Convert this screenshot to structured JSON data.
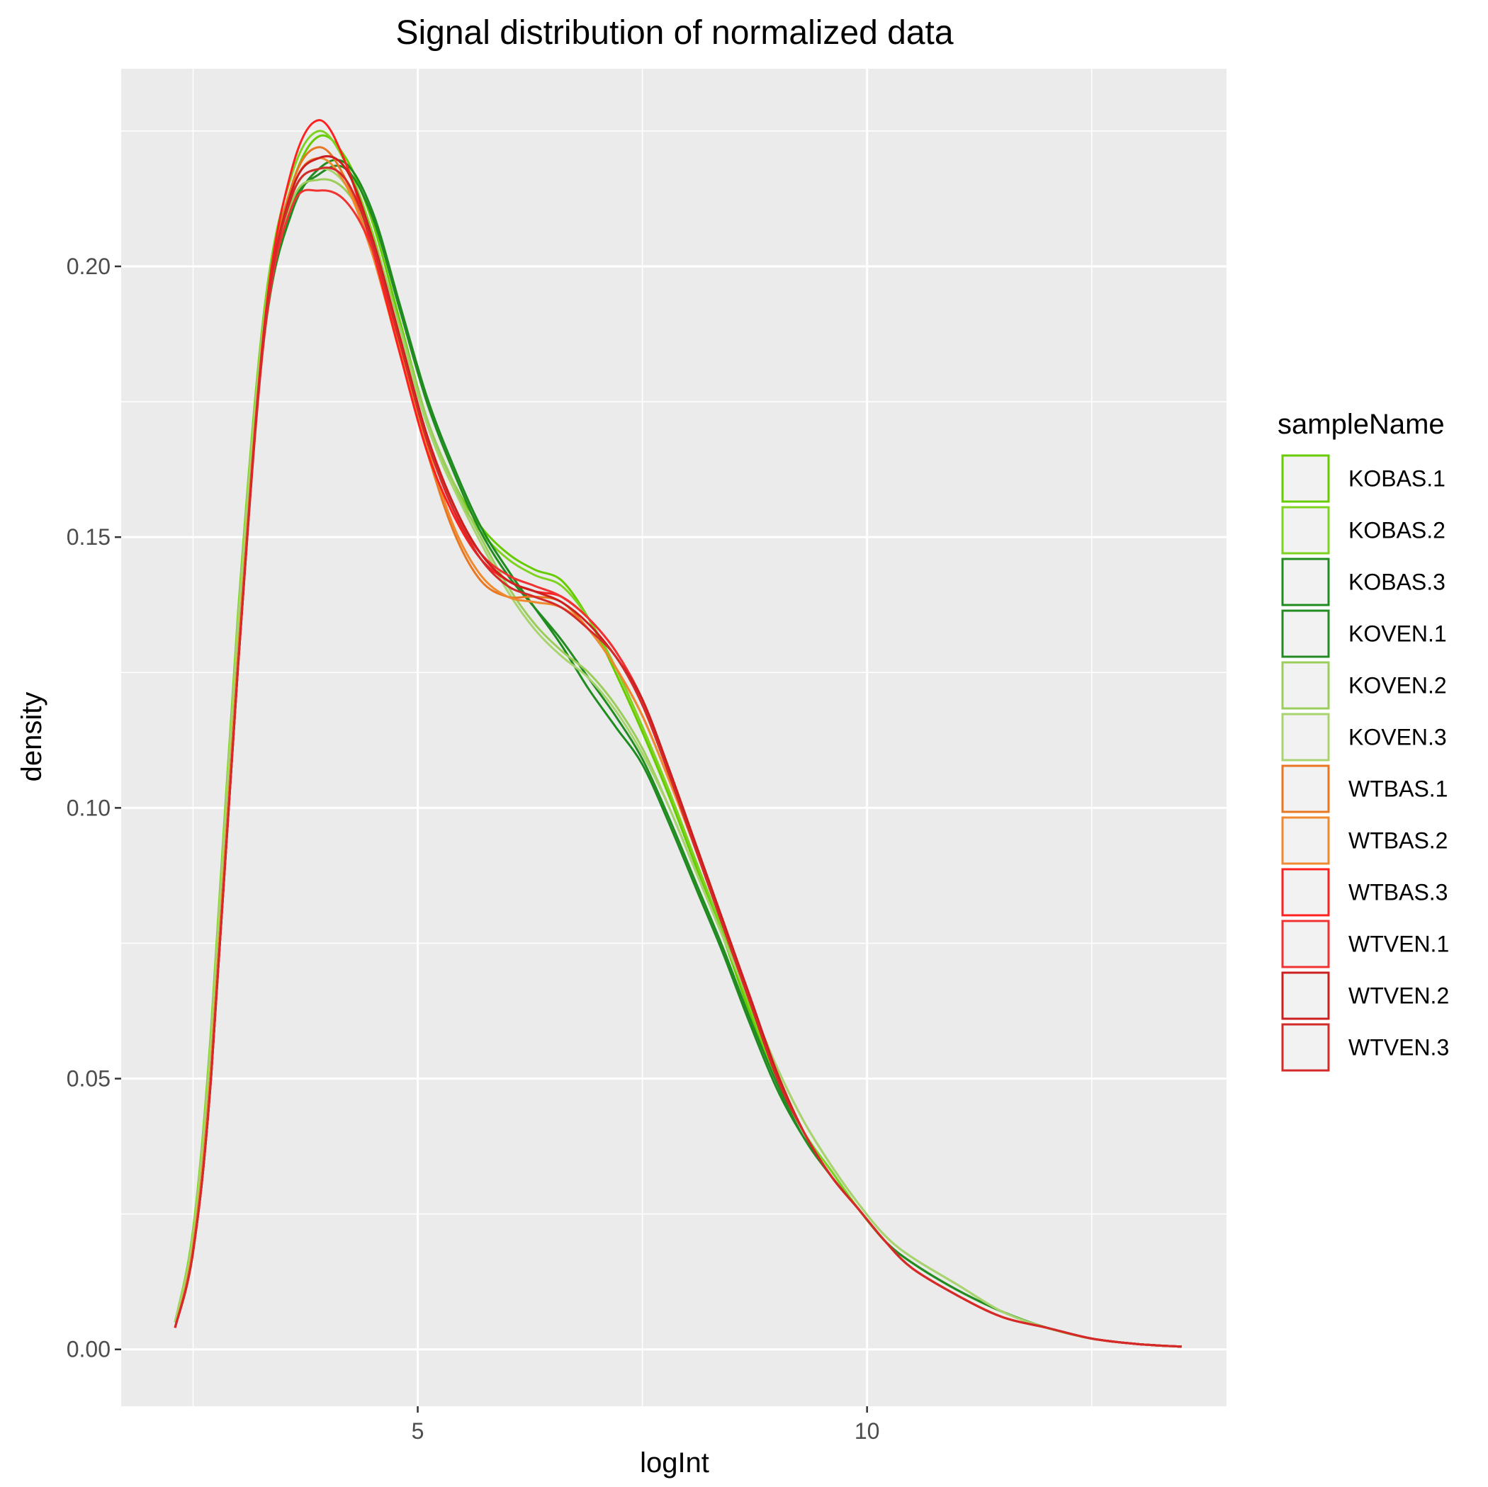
{
  "chart_data": {
    "type": "line",
    "title": "Signal distribution of normalized data",
    "xlabel": "logInt",
    "ylabel": "density",
    "xlim": [
      1.7,
      14.0
    ],
    "ylim": [
      -0.0105,
      0.2365
    ],
    "x_ticks": [
      5,
      10
    ],
    "x_tick_labels": [
      "5",
      "10"
    ],
    "y_ticks": [
      0.0,
      0.05,
      0.1,
      0.15,
      0.2
    ],
    "y_tick_labels": [
      "0.00",
      "0.05",
      "0.10",
      "0.15",
      "0.20"
    ],
    "grid": true,
    "legend": {
      "title": "sampleName",
      "position": "right"
    },
    "x": [
      2.3,
      2.5,
      2.7,
      3.0,
      3.3,
      3.6,
      3.9,
      4.2,
      4.5,
      4.8,
      5.1,
      5.4,
      5.7,
      6.0,
      6.3,
      6.6,
      6.9,
      7.2,
      7.5,
      7.8,
      8.1,
      8.4,
      8.7,
      9.0,
      9.3,
      9.6,
      9.9,
      10.2,
      10.5,
      11.0,
      11.5,
      12.0,
      12.5,
      13.0,
      13.5
    ],
    "series": [
      {
        "name": "KOBAS.1",
        "color": "#66cc00",
        "values": [
          0.005,
          0.022,
          0.058,
          0.135,
          0.192,
          0.215,
          0.224,
          0.22,
          0.208,
          0.19,
          0.172,
          0.16,
          0.152,
          0.147,
          0.144,
          0.142,
          0.135,
          0.125,
          0.114,
          0.102,
          0.089,
          0.076,
          0.062,
          0.05,
          0.04,
          0.033,
          0.026,
          0.02,
          0.016,
          0.011,
          0.007,
          0.004,
          0.002,
          0.001,
          0.0005
        ]
      },
      {
        "name": "KOBAS.2",
        "color": "#7ed321",
        "values": [
          0.005,
          0.022,
          0.059,
          0.136,
          0.193,
          0.217,
          0.225,
          0.219,
          0.206,
          0.188,
          0.171,
          0.159,
          0.151,
          0.146,
          0.143,
          0.141,
          0.135,
          0.126,
          0.115,
          0.103,
          0.09,
          0.077,
          0.063,
          0.05,
          0.04,
          0.033,
          0.026,
          0.02,
          0.016,
          0.011,
          0.007,
          0.004,
          0.002,
          0.001,
          0.0005
        ]
      },
      {
        "name": "KOBAS.3",
        "color": "#1e8c1e",
        "values": [
          0.005,
          0.02,
          0.054,
          0.13,
          0.188,
          0.21,
          0.218,
          0.219,
          0.21,
          0.193,
          0.176,
          0.163,
          0.152,
          0.144,
          0.137,
          0.13,
          0.122,
          0.115,
          0.108,
          0.097,
          0.085,
          0.073,
          0.06,
          0.048,
          0.039,
          0.032,
          0.026,
          0.02,
          0.016,
          0.011,
          0.007,
          0.004,
          0.002,
          0.001,
          0.0005
        ]
      },
      {
        "name": "KOVEN.1",
        "color": "#228b22",
        "values": [
          0.005,
          0.02,
          0.055,
          0.131,
          0.189,
          0.211,
          0.217,
          0.218,
          0.209,
          0.192,
          0.175,
          0.162,
          0.151,
          0.143,
          0.137,
          0.131,
          0.124,
          0.117,
          0.109,
          0.098,
          0.086,
          0.074,
          0.061,
          0.049,
          0.039,
          0.032,
          0.026,
          0.02,
          0.016,
          0.011,
          0.007,
          0.004,
          0.002,
          0.001,
          0.0005
        ]
      },
      {
        "name": "KOVEN.2",
        "color": "#9acd5a",
        "values": [
          0.005,
          0.021,
          0.056,
          0.133,
          0.19,
          0.212,
          0.216,
          0.214,
          0.205,
          0.189,
          0.172,
          0.16,
          0.15,
          0.141,
          0.134,
          0.129,
          0.125,
          0.119,
          0.111,
          0.1,
          0.088,
          0.076,
          0.064,
          0.052,
          0.042,
          0.034,
          0.027,
          0.021,
          0.017,
          0.012,
          0.007,
          0.004,
          0.002,
          0.001,
          0.0005
        ]
      },
      {
        "name": "KOVEN.3",
        "color": "#a8d46f",
        "values": [
          0.005,
          0.021,
          0.057,
          0.134,
          0.191,
          0.213,
          0.218,
          0.215,
          0.204,
          0.188,
          0.171,
          0.159,
          0.149,
          0.14,
          0.133,
          0.128,
          0.124,
          0.118,
          0.11,
          0.1,
          0.088,
          0.076,
          0.064,
          0.052,
          0.042,
          0.034,
          0.027,
          0.021,
          0.017,
          0.012,
          0.007,
          0.004,
          0.002,
          0.001,
          0.0005
        ]
      },
      {
        "name": "WTBAS.1",
        "color": "#e87722",
        "values": [
          0.004,
          0.019,
          0.052,
          0.128,
          0.19,
          0.215,
          0.222,
          0.216,
          0.202,
          0.184,
          0.166,
          0.151,
          0.142,
          0.139,
          0.139,
          0.138,
          0.133,
          0.126,
          0.117,
          0.105,
          0.092,
          0.078,
          0.064,
          0.051,
          0.04,
          0.032,
          0.026,
          0.02,
          0.015,
          0.01,
          0.006,
          0.004,
          0.002,
          0.001,
          0.0005
        ]
      },
      {
        "name": "WTBAS.2",
        "color": "#f08a30",
        "values": [
          0.004,
          0.019,
          0.052,
          0.128,
          0.189,
          0.214,
          0.22,
          0.215,
          0.202,
          0.185,
          0.167,
          0.152,
          0.143,
          0.139,
          0.138,
          0.137,
          0.133,
          0.126,
          0.117,
          0.105,
          0.092,
          0.078,
          0.064,
          0.051,
          0.04,
          0.032,
          0.026,
          0.02,
          0.015,
          0.01,
          0.006,
          0.004,
          0.002,
          0.001,
          0.0005
        ]
      },
      {
        "name": "WTBAS.3",
        "color": "#ff2020",
        "values": [
          0.004,
          0.018,
          0.05,
          0.126,
          0.19,
          0.218,
          0.227,
          0.219,
          0.203,
          0.184,
          0.166,
          0.154,
          0.146,
          0.142,
          0.14,
          0.139,
          0.135,
          0.129,
          0.12,
          0.107,
          0.093,
          0.079,
          0.065,
          0.051,
          0.04,
          0.032,
          0.026,
          0.02,
          0.015,
          0.01,
          0.006,
          0.004,
          0.002,
          0.001,
          0.0005
        ]
      },
      {
        "name": "WTVEN.1",
        "color": "#f03232",
        "values": [
          0.004,
          0.018,
          0.05,
          0.126,
          0.188,
          0.211,
          0.214,
          0.212,
          0.203,
          0.186,
          0.168,
          0.155,
          0.147,
          0.143,
          0.141,
          0.139,
          0.135,
          0.129,
          0.12,
          0.107,
          0.093,
          0.079,
          0.065,
          0.051,
          0.04,
          0.032,
          0.026,
          0.02,
          0.015,
          0.01,
          0.006,
          0.004,
          0.002,
          0.001,
          0.0005
        ]
      },
      {
        "name": "WTVEN.2",
        "color": "#cc1f1f",
        "values": [
          0.004,
          0.018,
          0.05,
          0.126,
          0.189,
          0.214,
          0.22,
          0.218,
          0.205,
          0.187,
          0.169,
          0.156,
          0.147,
          0.142,
          0.14,
          0.138,
          0.134,
          0.128,
          0.12,
          0.107,
          0.093,
          0.079,
          0.065,
          0.051,
          0.04,
          0.032,
          0.026,
          0.02,
          0.015,
          0.01,
          0.006,
          0.004,
          0.002,
          0.001,
          0.0005
        ]
      },
      {
        "name": "WTVEN.3",
        "color": "#d42a2a",
        "values": [
          0.004,
          0.018,
          0.05,
          0.126,
          0.189,
          0.213,
          0.218,
          0.216,
          0.204,
          0.186,
          0.168,
          0.155,
          0.146,
          0.141,
          0.139,
          0.137,
          0.133,
          0.128,
          0.119,
          0.106,
          0.092,
          0.078,
          0.064,
          0.05,
          0.04,
          0.032,
          0.026,
          0.02,
          0.015,
          0.01,
          0.006,
          0.004,
          0.002,
          0.001,
          0.0005
        ]
      }
    ]
  }
}
